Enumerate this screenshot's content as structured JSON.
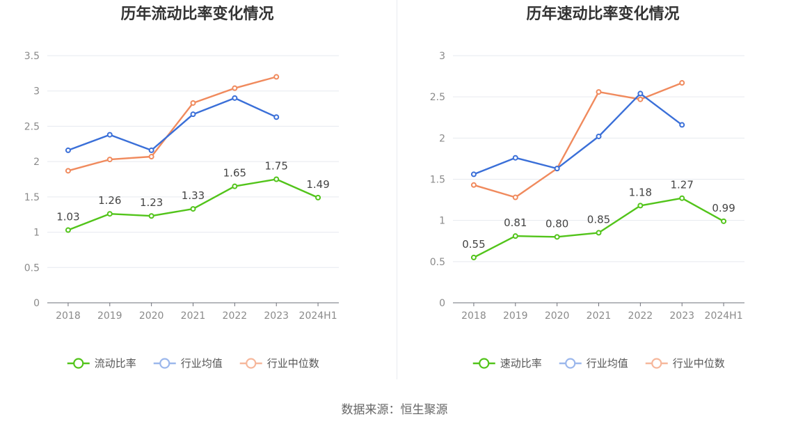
{
  "footer": {
    "source": "数据来源：恒生聚源"
  },
  "chart_data": [
    {
      "type": "line",
      "title": "历年流动比率变化情况",
      "categories": [
        "2018",
        "2019",
        "2020",
        "2021",
        "2022",
        "2023",
        "2024H1"
      ],
      "ylim": [
        0,
        3.5
      ],
      "yticks": [
        "0",
        "0.5",
        "1",
        "1.5",
        "2",
        "2.5",
        "3",
        "3.5"
      ],
      "grid": true,
      "legend": "bottom",
      "series": [
        {
          "name": "流动比率",
          "color": "#52c41a",
          "show_labels": true,
          "values": [
            1.03,
            1.26,
            1.23,
            1.33,
            1.65,
            1.75,
            1.49
          ],
          "labels": [
            "1.03",
            "1.26",
            "1.23",
            "1.33",
            "1.65",
            "1.75",
            "1.49"
          ]
        },
        {
          "name": "行业均值",
          "color": "#3a6fd8",
          "show_labels": false,
          "values": [
            2.16,
            2.38,
            2.16,
            2.67,
            2.9,
            2.63,
            null
          ]
        },
        {
          "name": "行业中位数",
          "color": "#f08a5d",
          "show_labels": false,
          "values": [
            1.87,
            2.03,
            2.07,
            2.83,
            3.04,
            3.2,
            null
          ]
        }
      ]
    },
    {
      "type": "line",
      "title": "历年速动比率变化情况",
      "categories": [
        "2018",
        "2019",
        "2020",
        "2021",
        "2022",
        "2023",
        "2024H1"
      ],
      "ylim": [
        0,
        3
      ],
      "yticks": [
        "0",
        "0.5",
        "1",
        "1.5",
        "2",
        "2.5",
        "3"
      ],
      "grid": true,
      "legend": "bottom",
      "series": [
        {
          "name": "速动比率",
          "color": "#52c41a",
          "show_labels": true,
          "values": [
            0.55,
            0.81,
            0.8,
            0.85,
            1.18,
            1.27,
            0.99
          ],
          "labels": [
            "0.55",
            "0.81",
            "0.80",
            "0.85",
            "1.18",
            "1.27",
            "0.99"
          ]
        },
        {
          "name": "行业均值",
          "color": "#3a6fd8",
          "show_labels": false,
          "values": [
            1.56,
            1.76,
            1.63,
            2.02,
            2.54,
            2.16,
            null
          ]
        },
        {
          "name": "行业中位数",
          "color": "#f08a5d",
          "show_labels": false,
          "values": [
            1.43,
            1.28,
            1.63,
            2.56,
            2.47,
            2.67,
            null
          ]
        }
      ]
    }
  ]
}
